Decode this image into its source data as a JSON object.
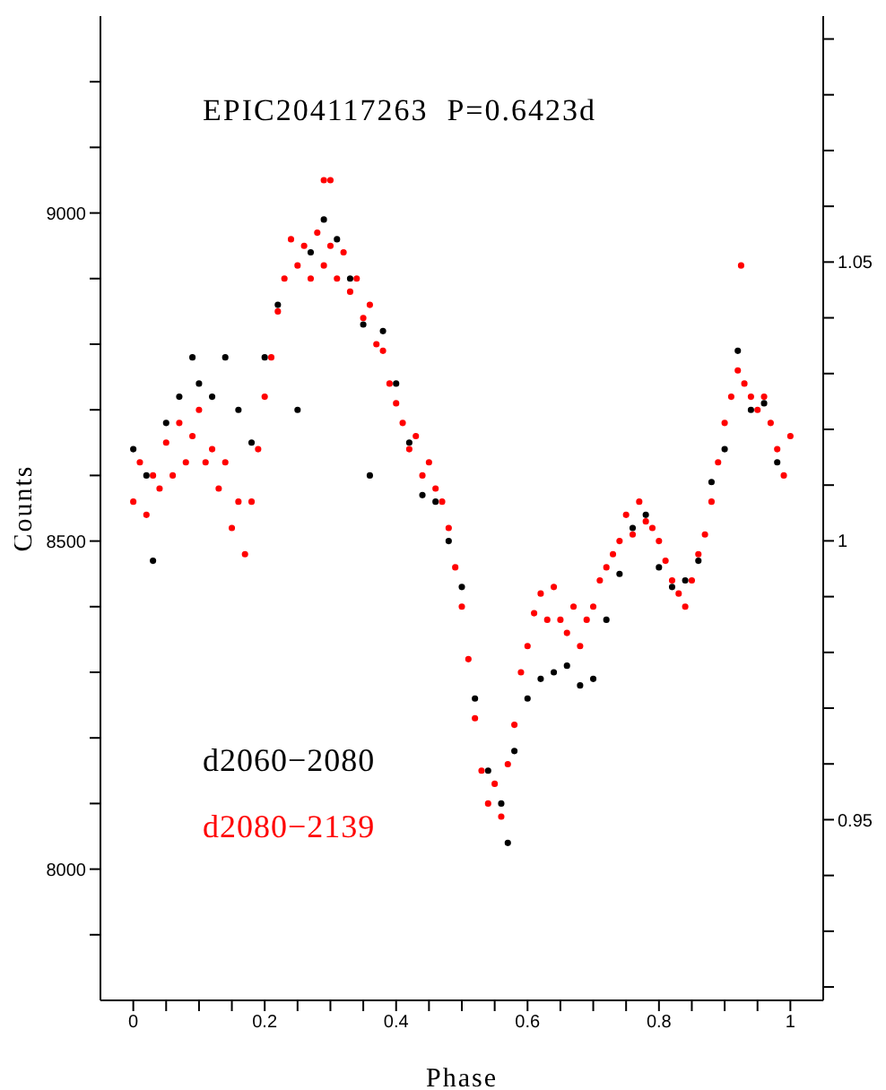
{
  "chart_data": {
    "type": "scatter",
    "title": "EPIC204117263  P=0.6423d",
    "xlabel": "Phase",
    "ylabel": "Counts",
    "marker": "circle",
    "xlim": [
      -0.05,
      1.05
    ],
    "xticks": [
      0,
      {
        "value": 0.05,
        "label": null
      },
      0.2,
      {
        "value": 0.1,
        "label": null
      },
      {
        "value": 0.15,
        "label": null
      },
      {
        "value": 0.25,
        "label": null
      },
      {
        "value": 0.3,
        "label": null
      },
      {
        "value": 0.35,
        "label": null
      },
      0.4,
      {
        "value": 0.45,
        "label": null
      },
      {
        "value": 0.5,
        "label": null
      },
      {
        "value": 0.55,
        "label": null
      },
      0.6,
      {
        "value": 0.65,
        "label": null
      },
      {
        "value": 0.7,
        "label": null
      },
      {
        "value": 0.75,
        "label": null
      },
      0.8,
      {
        "value": 0.85,
        "label": null
      },
      {
        "value": 0.9,
        "label": null
      },
      {
        "value": 0.95,
        "label": null
      },
      1
    ],
    "ylim": [
      7800,
      9300
    ],
    "yticks": [
      {
        "value": 7900,
        "label": null
      },
      8000,
      {
        "value": 8100,
        "label": null
      },
      {
        "value": 8200,
        "label": null
      },
      {
        "value": 8300,
        "label": null
      },
      {
        "value": 8400,
        "label": null
      },
      8500,
      {
        "value": 8600,
        "label": null
      },
      {
        "value": 8700,
        "label": null
      },
      {
        "value": 8800,
        "label": null
      },
      {
        "value": 8900,
        "label": null
      },
      9000,
      {
        "value": 9100,
        "label": null
      },
      {
        "value": 9200,
        "label": null
      }
    ],
    "y2lim": [
      0.9176,
      1.0941
    ],
    "y2ticks": [
      {
        "value": 0.92,
        "label": null
      },
      {
        "value": 0.93,
        "label": null
      },
      {
        "value": 0.94,
        "label": null
      },
      0.95,
      {
        "value": 0.96,
        "label": null
      },
      {
        "value": 0.97,
        "label": null
      },
      {
        "value": 0.98,
        "label": null
      },
      {
        "value": 0.99,
        "label": null
      },
      1,
      {
        "value": 1.01,
        "label": null
      },
      {
        "value": 1.02,
        "label": null
      },
      {
        "value": 1.03,
        "label": null
      },
      {
        "value": 1.04,
        "label": null
      },
      1.05,
      {
        "value": 1.06,
        "label": null
      },
      {
        "value": 1.07,
        "label": null
      },
      {
        "value": 1.08,
        "label": null
      },
      {
        "value": 1.09,
        "label": null
      }
    ],
    "series": [
      {
        "name": "d2060−2080",
        "color": "#000000",
        "x": [
          0,
          0.02,
          0.03,
          0.05,
          0.07,
          0.09,
          0.1,
          0.12,
          0.14,
          0.16,
          0.18,
          0.2,
          0.22,
          0.25,
          0.27,
          0.29,
          0.31,
          0.33,
          0.35,
          0.36,
          0.38,
          0.4,
          0.42,
          0.44,
          0.46,
          0.48,
          0.5,
          0.52,
          0.54,
          0.56,
          0.57,
          0.58,
          0.6,
          0.62,
          0.64,
          0.66,
          0.68,
          0.7,
          0.72,
          0.74,
          0.76,
          0.78,
          0.8,
          0.82,
          0.84,
          0.86,
          0.88,
          0.9,
          0.92,
          0.94,
          0.96,
          0.98
        ],
        "values": [
          8640,
          8600,
          8470,
          8680,
          8720,
          8780,
          8740,
          8720,
          8780,
          8700,
          8650,
          8780,
          8860,
          8700,
          8940,
          8990,
          8960,
          8900,
          8830,
          8600,
          8820,
          8740,
          8650,
          8570,
          8560,
          8500,
          8430,
          8260,
          8150,
          8100,
          8040,
          8180,
          8260,
          8290,
          8300,
          8310,
          8280,
          8290,
          8380,
          8450,
          8520,
          8540,
          8460,
          8430,
          8440,
          8470,
          8590,
          8640,
          8790,
          8700,
          8710,
          8620
        ]
      },
      {
        "name": "d2080−2139",
        "color": "#ff0000",
        "x": [
          0,
          0.01,
          0.02,
          0.03,
          0.04,
          0.05,
          0.06,
          0.07,
          0.08,
          0.09,
          0.1,
          0.11,
          0.12,
          0.13,
          0.14,
          0.15,
          0.16,
          0.17,
          0.18,
          0.19,
          0.2,
          0.21,
          0.22,
          0.23,
          0.24,
          0.25,
          0.26,
          0.27,
          0.28,
          0.29,
          0.3,
          0.31,
          0.32,
          0.33,
          0.34,
          0.35,
          0.36,
          0.37,
          0.38,
          0.39,
          0.4,
          0.41,
          0.42,
          0.43,
          0.44,
          0.45,
          0.46,
          0.47,
          0.48,
          0.49,
          0.5,
          0.51,
          0.52,
          0.53,
          0.54,
          0.55,
          0.56,
          0.57,
          0.58,
          0.59,
          0.6,
          0.61,
          0.62,
          0.63,
          0.64,
          0.65,
          0.66,
          0.67,
          0.68,
          0.69,
          0.7,
          0.71,
          0.72,
          0.73,
          0.74,
          0.75,
          0.76,
          0.77,
          0.78,
          0.79,
          0.8,
          0.81,
          0.82,
          0.83,
          0.84,
          0.85,
          0.86,
          0.87,
          0.88,
          0.89,
          0.9,
          0.91,
          0.92,
          0.93,
          0.94,
          0.95,
          0.96,
          0.97,
          0.98,
          0.99,
          1,
          0.29,
          0.3,
          0.925
        ],
        "values": [
          8560,
          8620,
          8540,
          8600,
          8580,
          8650,
          8600,
          8680,
          8620,
          8660,
          8700,
          8620,
          8640,
          8580,
          8620,
          8520,
          8560,
          8480,
          8560,
          8640,
          8720,
          8780,
          8850,
          8900,
          8960,
          8920,
          8950,
          8900,
          8970,
          8920,
          8950,
          8900,
          8940,
          8880,
          8900,
          8840,
          8860,
          8800,
          8790,
          8740,
          8710,
          8680,
          8640,
          8660,
          8600,
          8620,
          8580,
          8560,
          8520,
          8460,
          8400,
          8320,
          8230,
          8150,
          8100,
          8130,
          8080,
          8160,
          8220,
          8300,
          8340,
          8390,
          8420,
          8380,
          8430,
          8380,
          8360,
          8400,
          8340,
          8380,
          8400,
          8440,
          8460,
          8480,
          8500,
          8540,
          8510,
          8560,
          8530,
          8520,
          8500,
          8470,
          8440,
          8420,
          8400,
          8440,
          8480,
          8510,
          8560,
          8620,
          8680,
          8720,
          8760,
          8740,
          8720,
          8700,
          8720,
          8680,
          8640,
          8600,
          8660,
          9050,
          9050,
          8920
        ]
      }
    ]
  }
}
